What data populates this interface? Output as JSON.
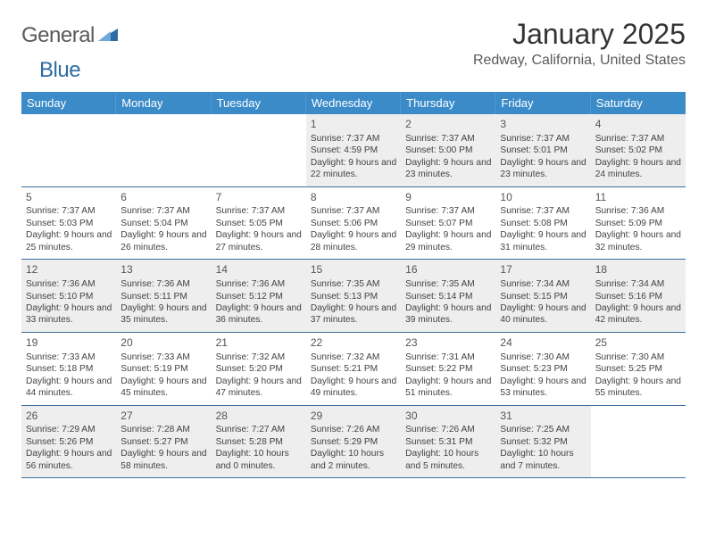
{
  "brand": {
    "part1": "General",
    "part2": "Blue"
  },
  "title": "January 2025",
  "location": "Redway, California, United States",
  "colors": {
    "header_bg": "#3b8bc9",
    "header_text": "#ffffff",
    "row_border": "#3b6fa0",
    "shaded_bg": "#eeeeee",
    "page_bg": "#ffffff",
    "text": "#424242"
  },
  "layout": {
    "columns": 7,
    "rows": 5,
    "leading_blanks": 3
  },
  "day_headers": [
    "Sunday",
    "Monday",
    "Tuesday",
    "Wednesday",
    "Thursday",
    "Friday",
    "Saturday"
  ],
  "days": [
    {
      "n": "1",
      "sr": "7:37 AM",
      "ss": "4:59 PM",
      "dl": "9 hours and 22 minutes."
    },
    {
      "n": "2",
      "sr": "7:37 AM",
      "ss": "5:00 PM",
      "dl": "9 hours and 23 minutes."
    },
    {
      "n": "3",
      "sr": "7:37 AM",
      "ss": "5:01 PM",
      "dl": "9 hours and 23 minutes."
    },
    {
      "n": "4",
      "sr": "7:37 AM",
      "ss": "5:02 PM",
      "dl": "9 hours and 24 minutes."
    },
    {
      "n": "5",
      "sr": "7:37 AM",
      "ss": "5:03 PM",
      "dl": "9 hours and 25 minutes."
    },
    {
      "n": "6",
      "sr": "7:37 AM",
      "ss": "5:04 PM",
      "dl": "9 hours and 26 minutes."
    },
    {
      "n": "7",
      "sr": "7:37 AM",
      "ss": "5:05 PM",
      "dl": "9 hours and 27 minutes."
    },
    {
      "n": "8",
      "sr": "7:37 AM",
      "ss": "5:06 PM",
      "dl": "9 hours and 28 minutes."
    },
    {
      "n": "9",
      "sr": "7:37 AM",
      "ss": "5:07 PM",
      "dl": "9 hours and 29 minutes."
    },
    {
      "n": "10",
      "sr": "7:37 AM",
      "ss": "5:08 PM",
      "dl": "9 hours and 31 minutes."
    },
    {
      "n": "11",
      "sr": "7:36 AM",
      "ss": "5:09 PM",
      "dl": "9 hours and 32 minutes."
    },
    {
      "n": "12",
      "sr": "7:36 AM",
      "ss": "5:10 PM",
      "dl": "9 hours and 33 minutes."
    },
    {
      "n": "13",
      "sr": "7:36 AM",
      "ss": "5:11 PM",
      "dl": "9 hours and 35 minutes."
    },
    {
      "n": "14",
      "sr": "7:36 AM",
      "ss": "5:12 PM",
      "dl": "9 hours and 36 minutes."
    },
    {
      "n": "15",
      "sr": "7:35 AM",
      "ss": "5:13 PM",
      "dl": "9 hours and 37 minutes."
    },
    {
      "n": "16",
      "sr": "7:35 AM",
      "ss": "5:14 PM",
      "dl": "9 hours and 39 minutes."
    },
    {
      "n": "17",
      "sr": "7:34 AM",
      "ss": "5:15 PM",
      "dl": "9 hours and 40 minutes."
    },
    {
      "n": "18",
      "sr": "7:34 AM",
      "ss": "5:16 PM",
      "dl": "9 hours and 42 minutes."
    },
    {
      "n": "19",
      "sr": "7:33 AM",
      "ss": "5:18 PM",
      "dl": "9 hours and 44 minutes."
    },
    {
      "n": "20",
      "sr": "7:33 AM",
      "ss": "5:19 PM",
      "dl": "9 hours and 45 minutes."
    },
    {
      "n": "21",
      "sr": "7:32 AM",
      "ss": "5:20 PM",
      "dl": "9 hours and 47 minutes."
    },
    {
      "n": "22",
      "sr": "7:32 AM",
      "ss": "5:21 PM",
      "dl": "9 hours and 49 minutes."
    },
    {
      "n": "23",
      "sr": "7:31 AM",
      "ss": "5:22 PM",
      "dl": "9 hours and 51 minutes."
    },
    {
      "n": "24",
      "sr": "7:30 AM",
      "ss": "5:23 PM",
      "dl": "9 hours and 53 minutes."
    },
    {
      "n": "25",
      "sr": "7:30 AM",
      "ss": "5:25 PM",
      "dl": "9 hours and 55 minutes."
    },
    {
      "n": "26",
      "sr": "7:29 AM",
      "ss": "5:26 PM",
      "dl": "9 hours and 56 minutes."
    },
    {
      "n": "27",
      "sr": "7:28 AM",
      "ss": "5:27 PM",
      "dl": "9 hours and 58 minutes."
    },
    {
      "n": "28",
      "sr": "7:27 AM",
      "ss": "5:28 PM",
      "dl": "10 hours and 0 minutes."
    },
    {
      "n": "29",
      "sr": "7:26 AM",
      "ss": "5:29 PM",
      "dl": "10 hours and 2 minutes."
    },
    {
      "n": "30",
      "sr": "7:26 AM",
      "ss": "5:31 PM",
      "dl": "10 hours and 5 minutes."
    },
    {
      "n": "31",
      "sr": "7:25 AM",
      "ss": "5:32 PM",
      "dl": "10 hours and 7 minutes."
    }
  ],
  "labels": {
    "sunrise": "Sunrise:",
    "sunset": "Sunset:",
    "daylight": "Daylight:"
  }
}
